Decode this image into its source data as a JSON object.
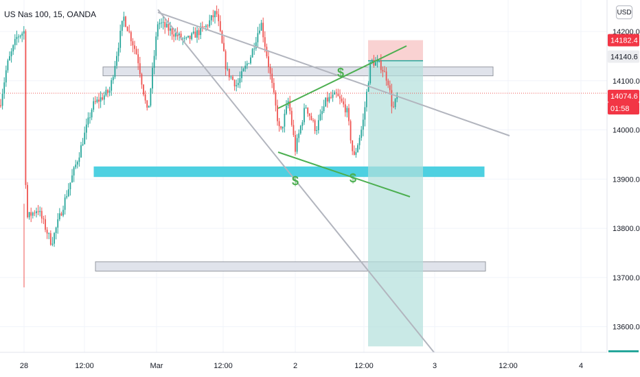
{
  "symbol": "US Nas 100, 15, OANDA",
  "currency_button": "USD",
  "chart_data": {
    "type": "candlestick",
    "title": "US Nas 100, 15, OANDA",
    "y_axis": {
      "ticks": [
        "14200.0",
        "14100.0",
        "14000.0",
        "13900.0",
        "13800.0",
        "13700.0",
        "13600.0"
      ],
      "ylim": [
        13540,
        14240
      ]
    },
    "x_axis": {
      "ticks": [
        "28",
        "12:00",
        "Mar",
        "12:00",
        "2",
        "12:00",
        "3",
        "12:00",
        "4"
      ]
    },
    "price_labels": [
      {
        "text": "14182.4",
        "kind": "stop",
        "bg": "#f23645",
        "fg": "#ffffff"
      },
      {
        "text": "14140.6",
        "kind": "entry",
        "bg": "#ecedf0",
        "fg": "#131722"
      },
      {
        "text": "14074.6",
        "kind": "last",
        "bg": "#f23645",
        "fg": "#ffffff"
      },
      {
        "text": "01:58",
        "kind": "countdown",
        "bg": "#f23645",
        "fg": "#ffffff"
      }
    ],
    "last_price": 14074.6,
    "annotations": [
      {
        "type": "dollar-marker",
        "text": "$"
      },
      {
        "type": "dollar-marker",
        "text": "$"
      },
      {
        "type": "dollar-marker",
        "text": "$"
      }
    ],
    "zones": [
      {
        "name": "gray-zone-top",
        "from": 14110,
        "to": 14128,
        "color": "#e0e3eb"
      },
      {
        "name": "cyan-zone",
        "from": 13905,
        "to": 13925,
        "color": "#4dd0e1"
      },
      {
        "name": "gray-zone-bottom",
        "from": 13713,
        "to": 13732,
        "color": "#e0e3eb"
      }
    ],
    "position": {
      "direction": "short",
      "entry": 14140.6,
      "stop": 14182.4,
      "target": 13560
    },
    "trendlines": [
      {
        "name": "upper-descending-line",
        "color": "#b2b5be"
      },
      {
        "name": "lower-descending-line",
        "color": "#b2b5be"
      },
      {
        "name": "channel-upper-line",
        "color": "#4caf50"
      },
      {
        "name": "channel-lower-line",
        "color": "#4caf50"
      }
    ],
    "colors": {
      "up": "#26a69a",
      "down": "#ef5350",
      "grid": "#f0f3fa",
      "axis_text": "#131722"
    }
  }
}
